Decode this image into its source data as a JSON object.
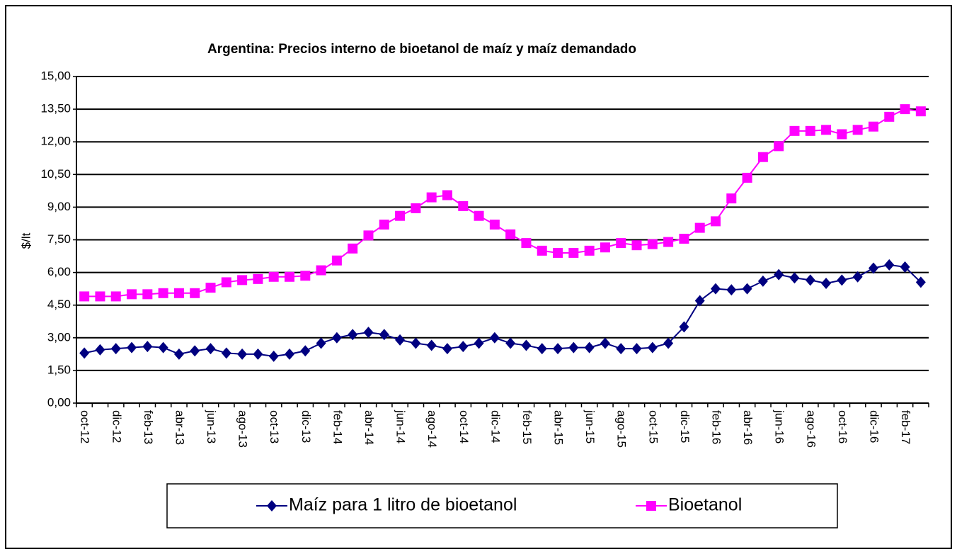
{
  "chart_data": {
    "type": "line",
    "title": "Argentina: Precios interno de bioetanol de maíz y maíz demandado",
    "y_label": "$/lt",
    "categories": [
      "oct-12",
      null,
      "dic-12",
      null,
      "feb-13",
      null,
      "abr-13",
      null,
      "jun-13",
      null,
      "ago-13",
      null,
      "oct-13",
      null,
      "dic-13",
      null,
      "feb-14",
      null,
      "abr-14",
      null,
      "jun-14",
      null,
      "ago-14",
      null,
      "oct-14",
      null,
      "dic-14",
      null,
      "feb-15",
      null,
      "abr-15",
      null,
      "jun-15",
      null,
      "ago-15",
      null,
      "oct-15",
      null,
      "dic-15",
      null,
      "feb-16",
      null,
      "abr-16",
      null,
      "jun-16",
      null,
      "ago-16",
      null,
      "oct-16",
      null,
      "dic-16",
      null,
      "feb-17",
      null
    ],
    "series": [
      {
        "name": "Maíz para 1 litro de bioetanol",
        "color": "#000080",
        "marker": "diamond",
        "values": [
          2.3,
          2.45,
          2.5,
          2.55,
          2.6,
          2.55,
          2.25,
          2.4,
          2.5,
          2.3,
          2.25,
          2.25,
          2.15,
          2.25,
          2.4,
          2.75,
          3.0,
          3.15,
          3.25,
          3.15,
          2.9,
          2.75,
          2.65,
          2.5,
          2.6,
          2.75,
          3.0,
          2.75,
          2.65,
          2.5,
          2.5,
          2.55,
          2.55,
          2.75,
          2.5,
          2.5,
          2.55,
          2.75,
          3.5,
          4.7,
          5.25,
          5.2,
          5.25,
          5.6,
          5.9,
          5.75,
          5.65,
          5.5,
          5.65,
          5.8,
          6.2,
          6.35,
          6.25,
          5.55
        ]
      },
      {
        "name": "Bioetanol",
        "color": "#ff00ff",
        "marker": "square",
        "values": [
          4.9,
          4.9,
          4.9,
          5.0,
          5.0,
          5.05,
          5.05,
          5.05,
          5.3,
          5.55,
          5.65,
          5.7,
          5.8,
          5.8,
          5.85,
          6.1,
          6.55,
          7.1,
          7.7,
          8.2,
          8.6,
          8.95,
          9.45,
          9.55,
          9.05,
          8.6,
          8.2,
          7.75,
          7.35,
          7.0,
          6.9,
          6.9,
          7.0,
          7.15,
          7.35,
          7.25,
          7.3,
          7.4,
          7.55,
          8.05,
          8.35,
          9.4,
          10.35,
          11.3,
          11.8,
          12.5,
          12.5,
          12.55,
          12.35,
          12.55,
          12.7,
          13.15,
          13.5,
          13.4
        ]
      }
    ],
    "ylim": [
      0,
      15
    ],
    "yticks": [
      {
        "value": 0,
        "label": "0,00"
      },
      {
        "value": 1.5,
        "label": "1,50"
      },
      {
        "value": 3,
        "label": "3,00"
      },
      {
        "value": 4.5,
        "label": "4,50"
      },
      {
        "value": 6,
        "label": "6,00"
      },
      {
        "value": 7.5,
        "label": "7,50"
      },
      {
        "value": 9,
        "label": "9,00"
      },
      {
        "value": 10.5,
        "label": "10,50"
      },
      {
        "value": 12,
        "label": "12,00"
      },
      {
        "value": 13.5,
        "label": "13,50"
      },
      {
        "value": 15,
        "label": "15,00"
      }
    ],
    "grid": true,
    "legend": "bottom"
  }
}
